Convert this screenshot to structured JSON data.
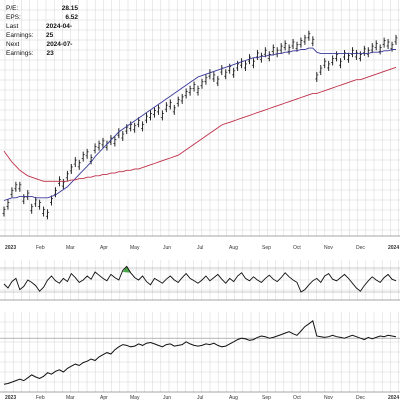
{
  "header": {
    "stats": [
      {
        "label": "P/E:",
        "value": "28.15"
      },
      {
        "label": "EPS:",
        "value": "6.52"
      },
      {
        "label": "Last Earnings:",
        "value": "2024-04-25"
      },
      {
        "label": "Next Earnings:",
        "value": "2024-07-23"
      }
    ]
  },
  "colors": {
    "price": "#111111",
    "ma_short": "#3a3a9a",
    "ma_long": "#c0304a",
    "indicator_fill": "#4aa84a",
    "grid": "#d4d4d4"
  },
  "chart_data": [
    {
      "type": "line",
      "panel": "price",
      "x_labels": [
        "2023",
        "Feb",
        "Mar",
        "Apr",
        "May",
        "Jun",
        "Jul",
        "Aug",
        "Sep",
        "Oct",
        "Nov",
        "Dec",
        "2024"
      ],
      "grid": true,
      "series": [
        {
          "style": "ohlc-bars",
          "values": [
            12,
            17,
            26,
            30,
            30,
            21,
            24,
            14,
            19,
            17,
            12,
            10,
            20,
            26,
            34,
            32,
            38,
            43,
            48,
            46,
            52,
            54,
            50,
            58,
            60,
            62,
            60,
            64,
            63,
            69,
            67,
            72,
            74,
            73,
            77,
            74,
            80,
            82,
            84,
            86,
            82,
            88,
            90,
            86,
            92,
            94,
            98,
            100,
            103,
            100,
            105,
            108,
            112,
            110,
            107,
            115,
            112,
            116,
            113,
            118,
            120,
            118,
            123,
            120,
            126,
            124,
            128,
            125,
            130,
            128,
            131,
            133,
            130,
            134,
            132,
            135,
            137,
            140,
            136,
            110,
            115,
            120,
            118,
            122,
            125,
            120,
            126,
            124,
            128,
            126,
            125,
            129,
            128,
            131,
            133,
            130,
            135,
            134,
            132,
            137
          ]
        },
        {
          "style": "moving-average-short",
          "values": [
            20,
            21,
            22,
            22,
            23,
            23,
            23,
            23,
            22,
            22,
            22,
            22,
            23,
            24,
            26,
            28,
            30,
            33,
            36,
            39,
            42,
            45,
            48,
            52,
            55,
            58,
            61,
            64,
            67,
            70,
            72,
            74,
            76,
            78,
            80,
            82,
            84,
            86,
            88,
            90,
            92,
            94,
            96,
            98,
            100,
            102,
            104,
            106,
            108,
            110,
            111,
            112,
            113,
            114,
            115,
            116,
            117,
            118,
            119,
            120,
            121,
            122,
            123,
            124,
            124,
            125,
            125,
            126,
            126,
            127,
            127,
            128,
            128,
            129,
            129,
            130,
            130,
            131,
            131,
            128,
            127,
            127,
            127,
            127,
            127,
            127,
            127,
            127,
            127,
            127,
            127,
            127,
            127,
            128,
            128,
            128,
            129,
            129,
            130,
            130
          ]
        },
        {
          "style": "moving-average-long",
          "values": [
            56,
            52,
            48,
            45,
            42,
            40,
            38,
            37,
            36,
            35,
            34,
            34,
            34,
            34,
            34,
            34,
            34,
            35,
            35,
            36,
            36,
            37,
            37,
            38,
            38,
            39,
            39,
            40,
            40,
            41,
            41,
            42,
            42,
            43,
            43,
            44,
            45,
            46,
            47,
            48,
            49,
            50,
            51,
            52,
            53,
            55,
            57,
            59,
            61,
            63,
            65,
            67,
            69,
            71,
            73,
            75,
            76,
            77,
            78,
            79,
            80,
            81,
            82,
            83,
            84,
            85,
            86,
            87,
            88,
            89,
            90,
            91,
            92,
            93,
            94,
            95,
            96,
            97,
            98,
            98,
            99,
            100,
            101,
            102,
            103,
            104,
            105,
            106,
            107,
            108,
            108,
            109,
            110,
            111,
            112,
            113,
            114,
            115,
            116,
            117
          ]
        }
      ]
    },
    {
      "type": "line",
      "panel": "oscillator",
      "x_labels": [],
      "grid": true,
      "series": [
        {
          "style": "oscillator-line",
          "values": [
            45,
            40,
            48,
            52,
            38,
            42,
            50,
            47,
            43,
            36,
            41,
            50,
            55,
            49,
            46,
            52,
            48,
            58,
            53,
            47,
            50,
            55,
            51,
            60,
            56,
            52,
            49,
            57,
            53,
            50,
            62,
            67,
            59,
            53,
            50,
            55,
            48,
            44,
            52,
            49,
            46,
            51,
            55,
            50,
            47,
            53,
            58,
            52,
            49,
            46,
            50,
            55,
            49,
            53,
            57,
            51,
            46,
            52,
            48,
            55,
            59,
            52,
            49,
            54,
            50,
            47,
            52,
            56,
            51,
            48,
            53,
            59,
            54,
            50,
            47,
            35,
            38,
            44,
            49,
            52,
            47,
            55,
            58,
            51,
            49,
            53,
            57,
            52,
            46,
            40,
            36,
            43,
            49,
            54,
            50,
            47,
            53,
            57,
            51,
            49
          ]
        }
      ]
    },
    {
      "type": "line",
      "panel": "relative-line",
      "x_labels": [
        "2023",
        "Feb",
        "Mar",
        "Apr",
        "May",
        "Jun",
        "Jul",
        "Aug",
        "Sep",
        "Oct",
        "Nov",
        "Dec",
        "2024"
      ],
      "grid": true,
      "series": [
        {
          "style": "relative-line",
          "values": [
            8,
            9,
            11,
            13,
            15,
            13,
            17,
            21,
            18,
            16,
            19,
            24,
            22,
            26,
            28,
            25,
            30,
            33,
            36,
            34,
            38,
            40,
            43,
            41,
            46,
            49,
            52,
            50,
            56,
            60,
            63,
            62,
            60,
            61,
            64,
            62,
            65,
            66,
            64,
            62,
            60,
            63,
            64,
            61,
            62,
            63,
            67,
            64,
            62,
            61,
            62,
            64,
            63,
            65,
            62,
            60,
            61,
            64,
            67,
            70,
            72,
            71,
            69,
            70,
            73,
            75,
            74,
            72,
            73,
            75,
            77,
            79,
            81,
            78,
            76,
            82,
            88,
            92,
            96,
            75,
            74,
            73,
            74,
            76,
            74,
            73,
            72,
            74,
            76,
            74,
            72,
            70,
            73,
            71,
            73,
            75,
            74,
            76,
            75,
            74
          ]
        }
      ]
    }
  ]
}
